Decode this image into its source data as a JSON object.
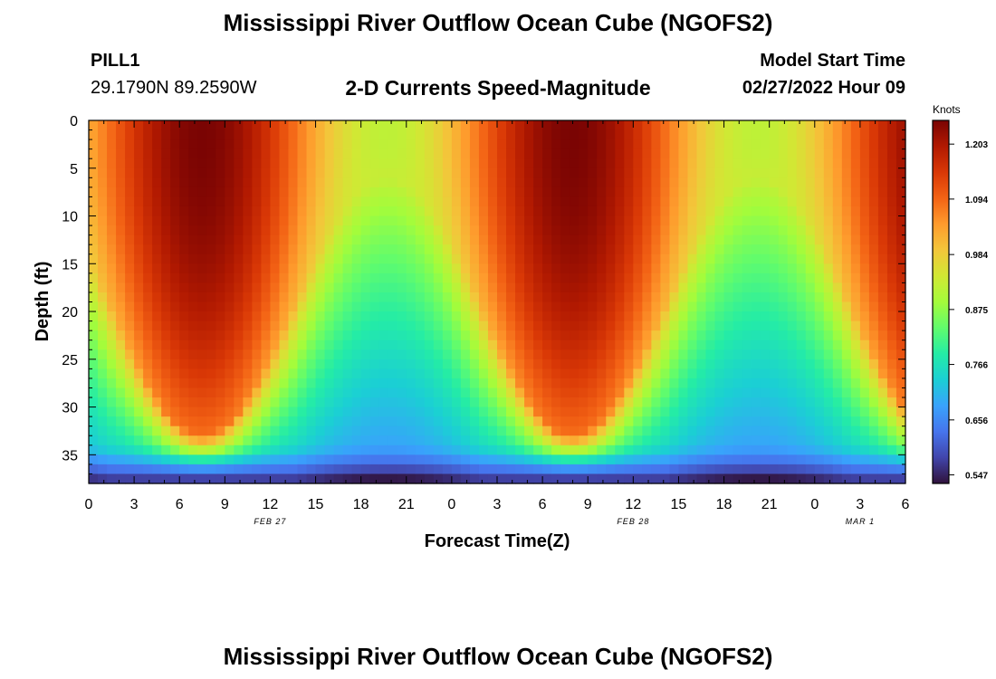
{
  "header": {
    "title": "Mississippi River Outflow Ocean Cube (NGOFS2)",
    "station": "PILL1",
    "coordinates": "29.1790N  89.2590W",
    "subtitle": "2-D Currents Speed-Magnitude",
    "model_start_label": "Model Start Time",
    "model_start_value": "02/27/2022 Hour 09"
  },
  "footer": {
    "title": "Mississippi River Outflow Ocean Cube (NGOFS2)"
  },
  "colors": {
    "colormap": [
      "#30123b",
      "#4145ab",
      "#4675ed",
      "#39a2fc",
      "#1bcfd4",
      "#24eca6",
      "#61fc6c",
      "#a4fc3b",
      "#d1e834",
      "#f3c63a",
      "#fe9b2d",
      "#f36315",
      "#d93806",
      "#b11901",
      "#7a0403"
    ]
  },
  "chart_data": {
    "type": "heatmap",
    "title": "2-D Currents Speed-Magnitude",
    "xlabel": "Forecast Time(Z)",
    "ylabel": "Depth (ft)",
    "x_range_hours": [
      0,
      54
    ],
    "x_ticks": [
      "0",
      "3",
      "6",
      "9",
      "12",
      "15",
      "18",
      "21",
      "0",
      "3",
      "6",
      "9",
      "12",
      "15",
      "18",
      "21",
      "0",
      "3",
      "6"
    ],
    "date_labels": [
      {
        "hour": 12,
        "label": "FEB 27"
      },
      {
        "hour": 36,
        "label": "FEB 28"
      },
      {
        "hour": 51,
        "label": "MAR 1"
      }
    ],
    "y_range_ft": [
      0,
      38
    ],
    "y_ticks": [
      0,
      5,
      10,
      15,
      20,
      25,
      30,
      35
    ],
    "colorbar": {
      "label": "Knots",
      "ticks": [
        "1.203",
        "1.094",
        "0.984",
        "0.875",
        "0.766",
        "0.656",
        "0.547"
      ],
      "range": [
        0.53,
        1.25
      ]
    },
    "field": {
      "description_of_pattern": "speed by forecast hour and depth",
      "tidal_period_hours": 24.5,
      "peak_hours": [
        7.5,
        32
      ],
      "min_hours": [
        20,
        44.5
      ],
      "surface_peak_speed": 1.25,
      "surface_min_speed": 0.92,
      "bottom_min_speed": 0.55
    }
  }
}
